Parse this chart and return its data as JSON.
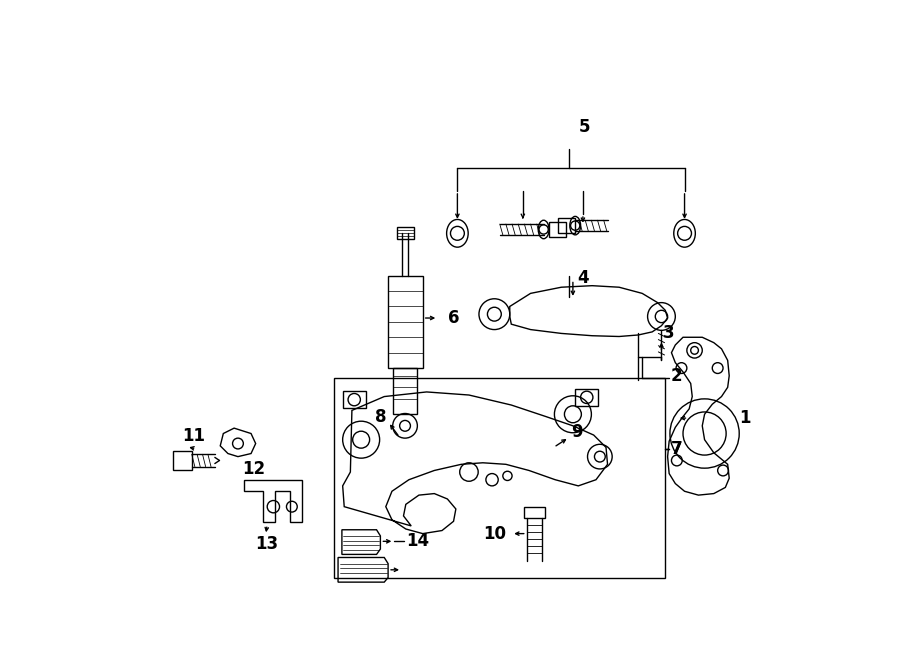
{
  "bg_color": "#ffffff",
  "line_color": "#000000",
  "fig_width": 9.0,
  "fig_height": 6.61,
  "dpi": 100,
  "lw": 1.0,
  "label_fontsize": 12,
  "label_fontweight": "bold"
}
